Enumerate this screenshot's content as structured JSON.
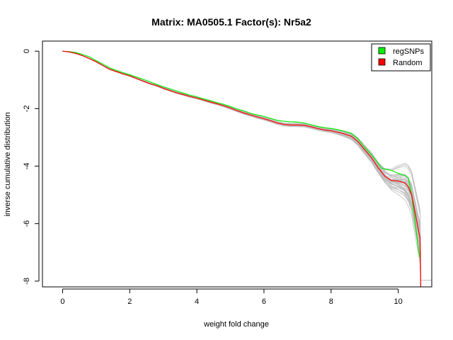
{
  "chart_data": {
    "type": "line",
    "title": "Matrix: MA0505.1 Factor(s): Nr5a2",
    "xlabel": "weight fold change",
    "ylabel": "inverse cumulative distribution",
    "xlim": [
      -0.6,
      11.0
    ],
    "ylim": [
      -8.2,
      0.35
    ],
    "xticks": [
      0,
      2,
      4,
      6,
      8,
      10
    ],
    "yticks": [
      0,
      -2,
      -4,
      -6,
      -8
    ],
    "grid": false,
    "legend_position": "top-right",
    "background_series_color": "#bebebe",
    "background_series_count": 40,
    "series": [
      {
        "name": "regSNPs",
        "color": "#00ee00",
        "x": [
          0.0,
          0.2,
          0.4,
          0.6,
          0.8,
          1.0,
          1.2,
          1.4,
          1.6,
          1.8,
          2.0,
          2.2,
          2.4,
          2.6,
          2.8,
          3.0,
          3.2,
          3.4,
          3.6,
          3.8,
          4.0,
          4.2,
          4.4,
          4.6,
          4.8,
          5.0,
          5.2,
          5.4,
          5.6,
          5.8,
          6.0,
          6.2,
          6.4,
          6.6,
          6.8,
          7.0,
          7.2,
          7.4,
          7.6,
          7.8,
          8.0,
          8.2,
          8.4,
          8.6,
          8.8,
          9.0,
          9.2,
          9.4,
          9.5,
          9.6,
          9.8,
          10.0,
          10.2,
          10.3,
          10.4,
          10.5,
          10.6,
          10.65
        ],
        "y": [
          0.0,
          -0.02,
          -0.05,
          -0.12,
          -0.2,
          -0.33,
          -0.45,
          -0.58,
          -0.67,
          -0.75,
          -0.82,
          -0.9,
          -0.98,
          -1.07,
          -1.15,
          -1.24,
          -1.31,
          -1.39,
          -1.46,
          -1.53,
          -1.59,
          -1.66,
          -1.72,
          -1.79,
          -1.85,
          -1.93,
          -2.01,
          -2.08,
          -2.16,
          -2.22,
          -2.27,
          -2.34,
          -2.41,
          -2.44,
          -2.46,
          -2.47,
          -2.5,
          -2.56,
          -2.62,
          -2.66,
          -2.69,
          -2.73,
          -2.79,
          -2.86,
          -3.05,
          -3.35,
          -3.6,
          -3.9,
          -4.07,
          -4.1,
          -4.15,
          -4.25,
          -4.32,
          -4.4,
          -5.0,
          -5.9,
          -6.9,
          -7.2
        ]
      },
      {
        "name": "Random",
        "color": "#ff0000",
        "x": [
          0.0,
          0.2,
          0.4,
          0.6,
          0.8,
          1.0,
          1.2,
          1.4,
          1.6,
          1.8,
          2.0,
          2.2,
          2.4,
          2.6,
          2.8,
          3.0,
          3.2,
          3.4,
          3.6,
          3.8,
          4.0,
          4.2,
          4.4,
          4.6,
          4.8,
          5.0,
          5.2,
          5.4,
          5.6,
          5.8,
          6.0,
          6.2,
          6.4,
          6.6,
          6.8,
          7.0,
          7.2,
          7.4,
          7.6,
          7.8,
          8.0,
          8.2,
          8.4,
          8.6,
          8.8,
          9.0,
          9.2,
          9.4,
          9.6,
          9.8,
          10.0,
          10.2,
          10.3,
          10.4,
          10.5,
          10.6,
          10.65,
          10.67
        ],
        "y": [
          0.0,
          -0.03,
          -0.08,
          -0.16,
          -0.26,
          -0.37,
          -0.5,
          -0.63,
          -0.71,
          -0.79,
          -0.86,
          -0.95,
          -1.04,
          -1.13,
          -1.2,
          -1.29,
          -1.37,
          -1.45,
          -1.51,
          -1.58,
          -1.63,
          -1.7,
          -1.77,
          -1.83,
          -1.9,
          -1.98,
          -2.07,
          -2.15,
          -2.22,
          -2.29,
          -2.35,
          -2.42,
          -2.5,
          -2.55,
          -2.57,
          -2.57,
          -2.58,
          -2.63,
          -2.69,
          -2.74,
          -2.77,
          -2.82,
          -2.88,
          -2.96,
          -3.15,
          -3.43,
          -3.7,
          -4.05,
          -4.35,
          -4.5,
          -4.52,
          -4.58,
          -4.72,
          -5.0,
          -5.6,
          -6.2,
          -6.5,
          -8.2
        ]
      }
    ]
  }
}
